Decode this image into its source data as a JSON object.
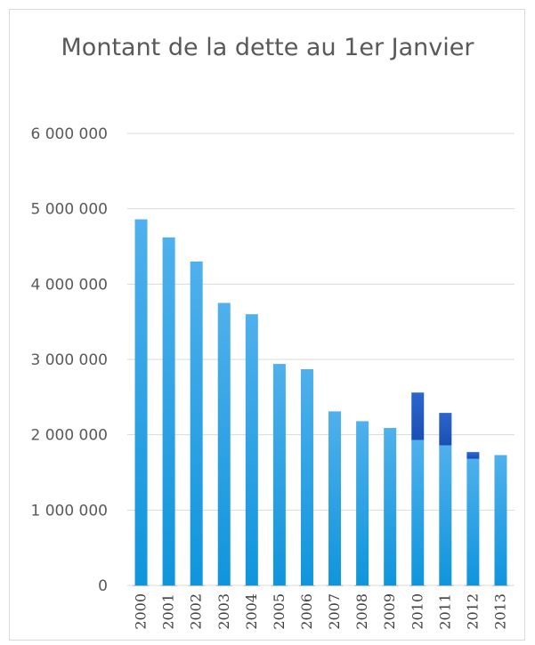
{
  "chart_data": {
    "type": "bar",
    "title": "Montant de la dette au 1er Janvier",
    "xlabel": "",
    "ylabel": "",
    "ylim": [
      0,
      6000000
    ],
    "yticks": [
      0,
      1000000,
      2000000,
      3000000,
      4000000,
      5000000,
      6000000
    ],
    "ytick_labels": [
      "0",
      "1 000 000",
      "2 000 000",
      "3 000 000",
      "4 000 000",
      "5 000 000",
      "6 000 000"
    ],
    "categories": [
      "2000",
      "2001",
      "2002",
      "2003",
      "2004",
      "2005",
      "2006",
      "2007",
      "2008",
      "2009",
      "2010",
      "2011",
      "2012",
      "2013"
    ],
    "series": [
      {
        "values": [
          4860000,
          4620000,
          4300000,
          3750000,
          3600000,
          2940000,
          2870000,
          2310000,
          2180000,
          2090000,
          1930000,
          1860000,
          1680000,
          1730000
        ],
        "color": "#1a9be0"
      },
      {
        "values": [
          0,
          0,
          0,
          0,
          0,
          0,
          0,
          0,
          0,
          0,
          630000,
          430000,
          90000,
          0
        ],
        "color": "#1f5bc4"
      }
    ],
    "stacked": true,
    "grid": true,
    "legend": "none"
  }
}
